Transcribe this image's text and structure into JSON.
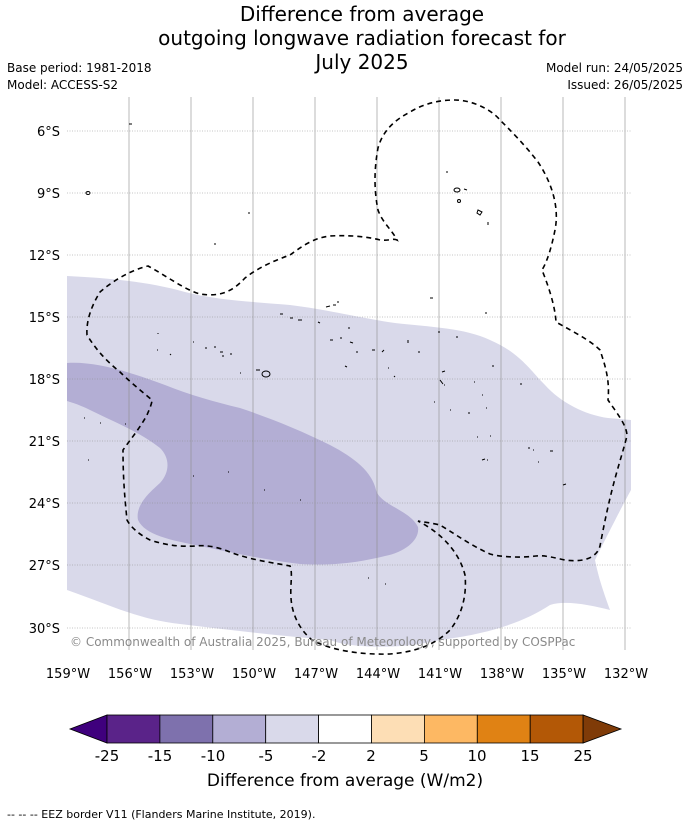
{
  "title": {
    "line1": "Difference from average",
    "line2": "outgoing longwave radiation forecast for",
    "line3": "July 2025"
  },
  "meta": {
    "base_period": "Base period: 1981-2018",
    "model": "Model: ACCESS-S2",
    "model_run": "Model run: 24/05/2025",
    "issued": "Issued: 26/05/2025"
  },
  "map": {
    "lat_labels": [
      "6°S",
      "9°S",
      "12°S",
      "15°S",
      "18°S",
      "21°S",
      "24°S",
      "27°S",
      "30°S"
    ],
    "lon_labels": [
      "159°W",
      "156°W",
      "153°W",
      "150°W",
      "147°W",
      "144°W",
      "141°W",
      "138°W",
      "135°W",
      "132°W"
    ],
    "copyright": "© Commonwealth of Australia 2025, Bureau of Meteorology, supported by COSPPac",
    "fill_colors": {
      "minus10_minus5": "#b3aed4",
      "minus5_minus2": "#d9d9ea"
    }
  },
  "colorbar": {
    "ticks": [
      "-25",
      "-15",
      "-10",
      "-5",
      "-2",
      "2",
      "5",
      "10",
      "15",
      "25"
    ],
    "colors": [
      "#3f007d",
      "#5a2389",
      "#7e71ad",
      "#b3aed4",
      "#d9d9ea",
      "#ffffff",
      "#fddeb5",
      "#fdb863",
      "#e08214",
      "#b35806",
      "#7f3b08"
    ],
    "title": "Difference from average (W/m2)"
  },
  "footer": {
    "legend": "--  --  -- EEZ border V11 (Flanders Marine Institute, 2019)."
  }
}
